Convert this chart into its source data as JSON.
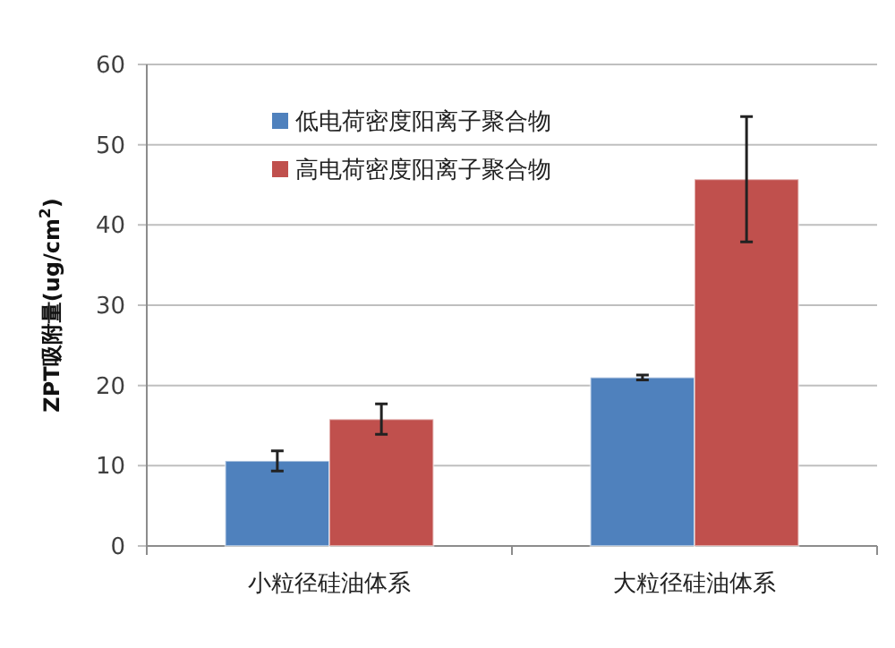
{
  "chart_data": {
    "type": "bar",
    "ylabel": "ZPT吸附量(ug/cm$^{2}$)",
    "categories": [
      "小粒径硅油体系",
      "大粒径硅油体系"
    ],
    "series": [
      {
        "name": "低电荷密度阳离子聚合物",
        "color": "#4f81bd",
        "values": [
          10.6,
          21.0
        ],
        "errors": [
          1.25,
          0.3
        ]
      },
      {
        "name": "高电荷密度阳离子聚合物",
        "color": "#c0504d",
        "values": [
          15.8,
          45.7
        ],
        "errors": [
          1.9,
          7.8
        ]
      }
    ],
    "ylim": [
      0,
      60
    ],
    "yticks": [
      0,
      10,
      20,
      30,
      40,
      50,
      60
    ],
    "grid": "y",
    "legend": "top left"
  }
}
